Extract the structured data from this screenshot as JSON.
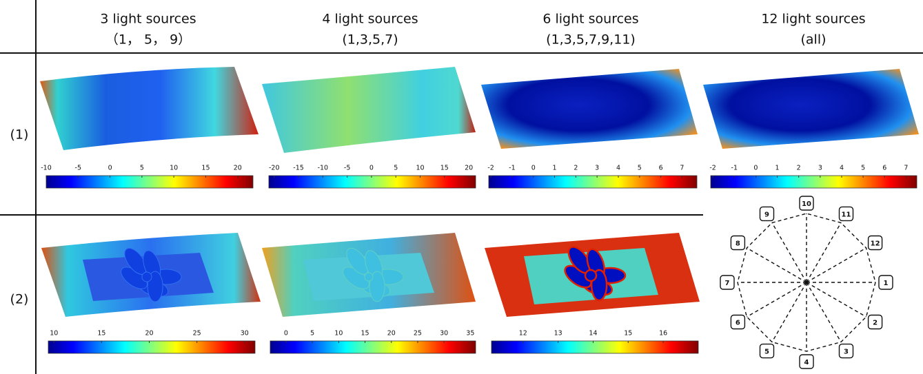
{
  "columns": [
    {
      "title": "3 light sources",
      "subtitle": "（1， 5， 9）"
    },
    {
      "title": "4 light sources",
      "subtitle": "(1,3,5,7)"
    },
    {
      "title": "6 light sources",
      "subtitle": "(1,3,5,7,9,11)"
    },
    {
      "title": "12 light sources",
      "subtitle": "(all)"
    }
  ],
  "rows": [
    {
      "label": "(1)",
      "colorbars": [
        {
          "lim": [
            -10,
            22.4
          ],
          "ticks": [
            -10,
            -5,
            0,
            5,
            10,
            15,
            20
          ]
        },
        {
          "lim": [
            -21.1,
            21.4
          ],
          "ticks": [
            -20,
            -15,
            -10,
            -5,
            0,
            5,
            10,
            15,
            20
          ]
        },
        {
          "lim": [
            -2.1,
            7.7
          ],
          "ticks": [
            -2,
            -1,
            0,
            1,
            2,
            3,
            4,
            5,
            6,
            7
          ]
        },
        {
          "lim": [
            -2.1,
            7.5
          ],
          "ticks": [
            -2,
            -1,
            0,
            1,
            2,
            3,
            4,
            5,
            6,
            7
          ]
        }
      ]
    },
    {
      "label": "(2)",
      "colorbars": [
        {
          "lim": [
            9.4,
            31.1
          ],
          "ticks": [
            10,
            15,
            20,
            25,
            30
          ]
        },
        {
          "lim": [
            -3,
            36
          ],
          "ticks": [
            0,
            5,
            10,
            15,
            20,
            25,
            30,
            35
          ]
        },
        {
          "lim": [
            11.1,
            17
          ],
          "ticks": [
            12,
            13,
            14,
            15,
            16
          ]
        }
      ]
    }
  ],
  "diagram": {
    "labels": [
      "1",
      "2",
      "3",
      "4",
      "5",
      "6",
      "7",
      "8",
      "9",
      "10",
      "11",
      "12"
    ]
  }
}
